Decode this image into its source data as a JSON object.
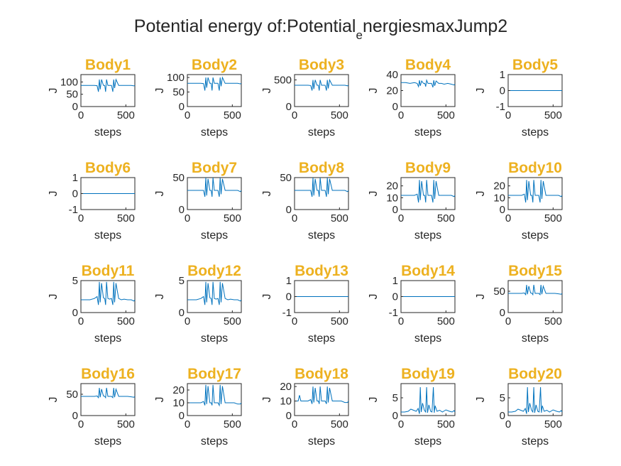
{
  "figure": {
    "title_main": "Potential energy of:Potential",
    "title_sub": "e",
    "title_tail": "nergiesmaxJump2",
    "title_color": "#262626",
    "subplot_title_color": "#EDB120",
    "line_color": "#0072BD",
    "axis_color": "#262626"
  },
  "chart_data": [
    {
      "type": "line",
      "title": "Body1",
      "xlabel": "steps",
      "ylabel": "J",
      "xlim": [
        0,
        600
      ],
      "ylim": [
        0,
        130
      ],
      "xticks": [
        "0",
        "500"
      ],
      "yticks": [
        "0",
        "50",
        "100"
      ],
      "ytick_values": [
        0,
        50,
        100
      ],
      "baseline": 86,
      "amp": 40,
      "x": [
        0,
        50,
        100,
        150,
        180,
        195,
        205,
        215,
        230,
        250,
        265,
        275,
        285,
        300,
        320,
        340,
        355,
        365,
        375,
        390,
        420,
        450,
        480,
        520,
        560,
        590,
        600
      ],
      "y": [
        86,
        86,
        86,
        86,
        85,
        60,
        110,
        70,
        110,
        86,
        86,
        60,
        110,
        86,
        86,
        86,
        60,
        110,
        75,
        110,
        86,
        86,
        86,
        86,
        86,
        84,
        86
      ]
    },
    {
      "type": "line",
      "title": "Body2",
      "xlabel": "steps",
      "ylabel": "J",
      "xlim": [
        0,
        600
      ],
      "ylim": [
        0,
        110
      ],
      "xticks": [
        "0",
        "500"
      ],
      "yticks": [
        "0",
        "50",
        "100"
      ],
      "ytick_values": [
        0,
        50,
        100
      ],
      "x": [
        0,
        50,
        100,
        150,
        180,
        195,
        205,
        215,
        230,
        250,
        265,
        275,
        285,
        300,
        320,
        340,
        355,
        365,
        375,
        390,
        420,
        450,
        480,
        520,
        560,
        590,
        600
      ],
      "y": [
        80,
        80,
        80,
        80,
        79,
        55,
        100,
        65,
        100,
        80,
        80,
        55,
        100,
        80,
        80,
        80,
        55,
        100,
        70,
        100,
        80,
        80,
        80,
        80,
        80,
        78,
        80
      ]
    },
    {
      "type": "line",
      "title": "Body3",
      "xlabel": "steps",
      "ylabel": "J",
      "xlim": [
        0,
        600
      ],
      "ylim": [
        0,
        600
      ],
      "xticks": [
        "0",
        "500"
      ],
      "yticks": [
        "0",
        "500"
      ],
      "ytick_values": [
        0,
        500
      ],
      "x": [
        0,
        50,
        100,
        150,
        180,
        195,
        205,
        215,
        230,
        250,
        265,
        275,
        285,
        300,
        320,
        340,
        355,
        365,
        375,
        390,
        420,
        450,
        480,
        520,
        560,
        590,
        600
      ],
      "y": [
        400,
        400,
        400,
        400,
        395,
        300,
        500,
        330,
        500,
        400,
        400,
        300,
        500,
        400,
        400,
        400,
        300,
        500,
        340,
        500,
        400,
        400,
        400,
        400,
        400,
        390,
        400
      ]
    },
    {
      "type": "line",
      "title": "Body4",
      "xlabel": "steps",
      "ylabel": "J",
      "xlim": [
        0,
        600
      ],
      "ylim": [
        0,
        40
      ],
      "xticks": [
        "0",
        "500"
      ],
      "yticks": [
        "0",
        "20",
        "40"
      ],
      "ytick_values": [
        0,
        20,
        40
      ],
      "x": [
        0,
        50,
        100,
        150,
        180,
        195,
        205,
        215,
        230,
        250,
        265,
        275,
        285,
        300,
        320,
        340,
        355,
        365,
        375,
        390,
        420,
        450,
        480,
        520,
        560,
        590,
        600
      ],
      "y": [
        30,
        30,
        29,
        30,
        29,
        25,
        33,
        26,
        32,
        29,
        29,
        25,
        33,
        29,
        29,
        29,
        24,
        33,
        26,
        32,
        29,
        29,
        28,
        29,
        28,
        27,
        28
      ]
    },
    {
      "type": "line",
      "title": "Body5",
      "xlabel": "steps",
      "ylabel": "J",
      "xlim": [
        0,
        600
      ],
      "ylim": [
        -1,
        1
      ],
      "xticks": [
        "0",
        "500"
      ],
      "yticks": [
        "-1",
        "0",
        "1"
      ],
      "ytick_values": [
        -1,
        0,
        1
      ],
      "x": [
        0,
        600
      ],
      "y": [
        0,
        0
      ]
    },
    {
      "type": "line",
      "title": "Body6",
      "xlabel": "steps",
      "ylabel": "J",
      "xlim": [
        0,
        600
      ],
      "ylim": [
        -1,
        1
      ],
      "xticks": [
        "0",
        "500"
      ],
      "yticks": [
        "-1",
        "0",
        "1"
      ],
      "ytick_values": [
        -1,
        0,
        1
      ],
      "x": [
        0,
        600
      ],
      "y": [
        0,
        0
      ]
    },
    {
      "type": "line",
      "title": "Body7",
      "xlabel": "steps",
      "ylabel": "J",
      "xlim": [
        0,
        600
      ],
      "ylim": [
        0,
        50
      ],
      "xticks": [
        "0",
        "500"
      ],
      "yticks": [
        "0",
        "50"
      ],
      "ytick_values": [
        0,
        50
      ],
      "x": [
        0,
        50,
        100,
        150,
        180,
        195,
        205,
        215,
        230,
        250,
        265,
        275,
        285,
        300,
        320,
        340,
        355,
        365,
        375,
        390,
        420,
        450,
        480,
        520,
        560,
        590,
        600
      ],
      "y": [
        30,
        30,
        30,
        30,
        30,
        20,
        50,
        22,
        48,
        30,
        30,
        20,
        50,
        30,
        30,
        30,
        20,
        50,
        24,
        48,
        30,
        30,
        30,
        30,
        30,
        28,
        30
      ]
    },
    {
      "type": "line",
      "title": "Body8",
      "xlabel": "steps",
      "ylabel": "J",
      "xlim": [
        0,
        600
      ],
      "ylim": [
        0,
        50
      ],
      "xticks": [
        "0",
        "500"
      ],
      "yticks": [
        "0",
        "50"
      ],
      "ytick_values": [
        0,
        50
      ],
      "x": [
        0,
        50,
        100,
        150,
        180,
        195,
        205,
        215,
        230,
        250,
        265,
        275,
        285,
        300,
        320,
        340,
        355,
        365,
        375,
        390,
        420,
        450,
        480,
        520,
        560,
        590,
        600
      ],
      "y": [
        30,
        30,
        30,
        30,
        30,
        20,
        50,
        22,
        48,
        30,
        30,
        20,
        50,
        30,
        30,
        30,
        20,
        50,
        24,
        48,
        30,
        30,
        30,
        30,
        30,
        28,
        30
      ]
    },
    {
      "type": "line",
      "title": "Body9",
      "xlabel": "steps",
      "ylabel": "J",
      "xlim": [
        0,
        600
      ],
      "ylim": [
        0,
        27
      ],
      "xticks": [
        "0",
        "500"
      ],
      "yticks": [
        "0",
        "10",
        "20"
      ],
      "ytick_values": [
        0,
        10,
        20
      ],
      "x": [
        0,
        50,
        100,
        150,
        180,
        195,
        205,
        215,
        230,
        250,
        265,
        275,
        285,
        300,
        320,
        340,
        355,
        365,
        375,
        390,
        420,
        450,
        480,
        520,
        560,
        590,
        600
      ],
      "y": [
        12,
        12,
        12,
        12,
        13,
        6,
        25,
        8,
        24,
        12,
        12,
        6,
        25,
        12,
        12,
        12,
        6,
        25,
        9,
        24,
        12,
        12,
        12,
        12,
        12,
        11,
        12
      ]
    },
    {
      "type": "line",
      "title": "Body10",
      "xlabel": "steps",
      "ylabel": "J",
      "xlim": [
        0,
        600
      ],
      "ylim": [
        0,
        27
      ],
      "xticks": [
        "0",
        "500"
      ],
      "yticks": [
        "0",
        "10",
        "20"
      ],
      "ytick_values": [
        0,
        10,
        20
      ],
      "x": [
        0,
        50,
        100,
        150,
        180,
        195,
        205,
        215,
        230,
        250,
        265,
        275,
        285,
        300,
        320,
        340,
        355,
        365,
        375,
        390,
        420,
        450,
        480,
        520,
        560,
        590,
        600
      ],
      "y": [
        12,
        12,
        12,
        12,
        13,
        6,
        25,
        8,
        24,
        12,
        12,
        6,
        25,
        12,
        12,
        12,
        6,
        25,
        9,
        24,
        12,
        12,
        12,
        12,
        12,
        11,
        12
      ]
    },
    {
      "type": "line",
      "title": "Body11",
      "xlabel": "steps",
      "ylabel": "J",
      "xlim": [
        0,
        600
      ],
      "ylim": [
        0,
        5
      ],
      "xticks": [
        "0",
        "500"
      ],
      "yticks": [
        "0",
        "5"
      ],
      "ytick_values": [
        0,
        5
      ],
      "x": [
        0,
        50,
        100,
        150,
        180,
        195,
        205,
        215,
        230,
        250,
        265,
        275,
        285,
        300,
        320,
        340,
        355,
        365,
        375,
        390,
        420,
        450,
        480,
        520,
        560,
        590,
        600
      ],
      "y": [
        2,
        2,
        2,
        2.2,
        2.5,
        1.2,
        4.8,
        1.6,
        4.6,
        2.3,
        2.2,
        1.2,
        4.8,
        2.2,
        2.1,
        2.2,
        1.2,
        4.8,
        1.6,
        4.6,
        2.2,
        2.0,
        2.1,
        2.0,
        2.0,
        1.8,
        2.0
      ]
    },
    {
      "type": "line",
      "title": "Body12",
      "xlabel": "steps",
      "ylabel": "J",
      "xlim": [
        0,
        600
      ],
      "ylim": [
        0,
        5
      ],
      "xticks": [
        "0",
        "500"
      ],
      "yticks": [
        "0",
        "5"
      ],
      "ytick_values": [
        0,
        5
      ],
      "x": [
        0,
        50,
        100,
        150,
        180,
        195,
        205,
        215,
        230,
        250,
        265,
        275,
        285,
        300,
        320,
        340,
        355,
        365,
        375,
        390,
        420,
        450,
        480,
        520,
        560,
        590,
        600
      ],
      "y": [
        2,
        2,
        2,
        2.2,
        2.5,
        1.2,
        4.8,
        1.6,
        4.6,
        2.3,
        2.2,
        1.2,
        4.8,
        2.2,
        2.1,
        2.2,
        1.2,
        4.8,
        1.6,
        4.6,
        2.2,
        2.0,
        2.1,
        2.0,
        2.0,
        1.8,
        2.0
      ]
    },
    {
      "type": "line",
      "title": "Body13",
      "xlabel": "steps",
      "ylabel": "J",
      "xlim": [
        0,
        600
      ],
      "ylim": [
        -1,
        1
      ],
      "xticks": [
        "0",
        "500"
      ],
      "yticks": [
        "-1",
        "0",
        "1"
      ],
      "ytick_values": [
        -1,
        0,
        1
      ],
      "x": [
        0,
        600
      ],
      "y": [
        0,
        0
      ]
    },
    {
      "type": "line",
      "title": "Body14",
      "xlabel": "steps",
      "ylabel": "J",
      "xlim": [
        0,
        600
      ],
      "ylim": [
        -1,
        1
      ],
      "xticks": [
        "0",
        "500"
      ],
      "yticks": [
        "-1",
        "0",
        "1"
      ],
      "ytick_values": [
        -1,
        0,
        1
      ],
      "x": [
        0,
        600
      ],
      "y": [
        0,
        0
      ]
    },
    {
      "type": "line",
      "title": "Body15",
      "xlabel": "steps",
      "ylabel": "J",
      "xlim": [
        0,
        600
      ],
      "ylim": [
        0,
        75
      ],
      "xticks": [
        "0",
        "500"
      ],
      "yticks": [
        "0",
        "50"
      ],
      "ytick_values": [
        0,
        50
      ],
      "x": [
        0,
        50,
        100,
        150,
        180,
        195,
        205,
        215,
        230,
        250,
        265,
        275,
        285,
        300,
        320,
        340,
        355,
        365,
        375,
        390,
        420,
        450,
        480,
        520,
        560,
        590,
        600
      ],
      "y": [
        45,
        45,
        45,
        45,
        46,
        42,
        65,
        43,
        62,
        46,
        45,
        42,
        65,
        45,
        45,
        45,
        42,
        65,
        43,
        62,
        45,
        45,
        45,
        45,
        44,
        43,
        45
      ]
    },
    {
      "type": "line",
      "title": "Body16",
      "xlabel": "steps",
      "ylabel": "J",
      "xlim": [
        0,
        600
      ],
      "ylim": [
        0,
        75
      ],
      "xticks": [
        "0",
        "500"
      ],
      "yticks": [
        "0",
        "50"
      ],
      "ytick_values": [
        0,
        50
      ],
      "x": [
        0,
        50,
        100,
        150,
        180,
        195,
        205,
        215,
        230,
        250,
        265,
        275,
        285,
        300,
        320,
        340,
        355,
        365,
        375,
        390,
        420,
        450,
        480,
        520,
        560,
        590,
        600
      ],
      "y": [
        45,
        45,
        45,
        45,
        46,
        42,
        65,
        43,
        62,
        46,
        45,
        42,
        65,
        45,
        45,
        45,
        42,
        65,
        43,
        62,
        45,
        45,
        45,
        45,
        44,
        43,
        45
      ]
    },
    {
      "type": "line",
      "title": "Body17",
      "xlabel": "steps",
      "ylabel": "J",
      "xlim": [
        0,
        600
      ],
      "ylim": [
        0,
        25
      ],
      "xticks": [
        "0",
        "500"
      ],
      "yticks": [
        "0",
        "10",
        "20"
      ],
      "ytick_values": [
        0,
        10,
        20
      ],
      "x": [
        0,
        50,
        100,
        150,
        180,
        195,
        205,
        215,
        230,
        250,
        265,
        275,
        285,
        300,
        320,
        340,
        355,
        365,
        375,
        390,
        420,
        450,
        480,
        520,
        560,
        590,
        600
      ],
      "y": [
        10,
        10,
        10,
        10,
        11,
        8,
        24,
        9,
        23,
        10,
        10,
        8,
        24,
        10,
        10,
        10,
        8,
        24,
        9,
        23,
        10,
        10,
        10,
        10,
        9,
        9,
        10
      ]
    },
    {
      "type": "line",
      "title": "Body18",
      "xlabel": "steps",
      "ylabel": "J",
      "xlim": [
        0,
        600
      ],
      "ylim": [
        0,
        22
      ],
      "xticks": [
        "0",
        "500"
      ],
      "yticks": [
        "0",
        "10",
        "20"
      ],
      "ytick_values": [
        0,
        10,
        20
      ],
      "x": [
        0,
        40,
        55,
        70,
        100,
        150,
        180,
        195,
        205,
        215,
        230,
        250,
        265,
        275,
        285,
        300,
        320,
        340,
        355,
        365,
        375,
        390,
        420,
        450,
        480,
        520,
        560,
        590,
        600
      ],
      "y": [
        10,
        10,
        14,
        10,
        10,
        10,
        11,
        8,
        20,
        9,
        19,
        10,
        10,
        8,
        20,
        10,
        10,
        10,
        8,
        20,
        9,
        19,
        10,
        10,
        10,
        10,
        9,
        9,
        10
      ]
    },
    {
      "type": "line",
      "title": "Body19",
      "xlabel": "steps",
      "ylabel": "J",
      "xlim": [
        0,
        600
      ],
      "ylim": [
        0,
        9
      ],
      "xticks": [
        "0",
        "500"
      ],
      "yticks": [
        "0",
        "5"
      ],
      "ytick_values": [
        0,
        5
      ],
      "x": [
        0,
        40,
        80,
        110,
        140,
        170,
        190,
        205,
        215,
        225,
        240,
        260,
        275,
        285,
        295,
        310,
        330,
        345,
        360,
        370,
        380,
        400,
        430,
        460,
        500,
        540,
        570,
        590,
        600
      ],
      "y": [
        1,
        1,
        1.2,
        1.8,
        1.5,
        1.2,
        2.0,
        0.5,
        8.0,
        1.0,
        3.5,
        1.5,
        1.0,
        8.0,
        0.8,
        3.0,
        1.2,
        1.0,
        8.0,
        0.8,
        2.8,
        1.2,
        1.5,
        1.0,
        1.6,
        1.2,
        1.0,
        1.4,
        1.0
      ]
    },
    {
      "type": "line",
      "title": "Body20",
      "xlabel": "steps",
      "ylabel": "J",
      "xlim": [
        0,
        600
      ],
      "ylim": [
        0,
        9
      ],
      "xticks": [
        "0",
        "500"
      ],
      "yticks": [
        "0",
        "5"
      ],
      "ytick_values": [
        0,
        5
      ],
      "x": [
        0,
        40,
        80,
        110,
        140,
        170,
        190,
        205,
        215,
        225,
        240,
        260,
        275,
        285,
        295,
        310,
        330,
        345,
        360,
        370,
        380,
        400,
        430,
        460,
        500,
        540,
        570,
        590,
        600
      ],
      "y": [
        1,
        1,
        1.2,
        1.8,
        1.5,
        1.2,
        2.0,
        0.5,
        8.0,
        1.0,
        3.5,
        1.5,
        1.0,
        8.0,
        0.8,
        3.0,
        1.2,
        1.0,
        8.0,
        0.8,
        2.8,
        1.2,
        1.5,
        1.0,
        1.6,
        1.2,
        1.0,
        1.4,
        1.0
      ]
    }
  ]
}
